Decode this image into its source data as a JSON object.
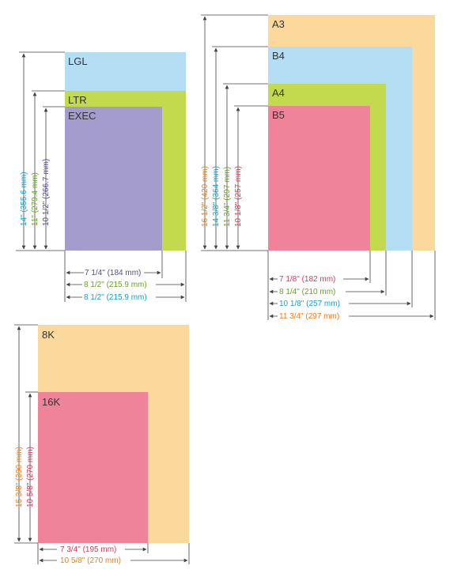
{
  "colors": {
    "lgl": "#b3def4",
    "ltr": "#c3d94e",
    "exec": "#a39ccc",
    "a3": "#fbd99c",
    "b4": "#b3def4",
    "a4": "#c3d94e",
    "b5": "#ee8399",
    "k8": "#fbd99c",
    "k16": "#ee8399",
    "text_cyan": "#1aa0c8",
    "text_green": "#6aa225",
    "text_purple": "#5b4a8e",
    "text_orange": "#e87f1c",
    "text_pink": "#d8385e",
    "line": "#444444"
  },
  "group1": {
    "labels": {
      "lgl": "LGL",
      "ltr": "LTR",
      "exec": "EXEC"
    },
    "heights": {
      "lgl": "14\" (355.6 mm)",
      "ltr": "11\" (279.4 mm)",
      "exec": "10 1/2\" (266.7 mm)"
    },
    "widths": {
      "exec": "7 1/4\" (184 mm)",
      "ltr": "8 1/2\" (215.9 mm)",
      "lgl": "8 1/2\" (215.9 mm)"
    }
  },
  "group2": {
    "labels": {
      "a3": "A3",
      "b4": "B4",
      "a4": "A4",
      "b5": "B5"
    },
    "heights": {
      "a3": "16 1/2\" (420 mm)",
      "b4": "14 3/8\" (364 mm)",
      "a4": "11 3/4\" (297 mm)",
      "b5": "10 1/8\" (257 mm)"
    },
    "widths": {
      "b5": "7 1/8\" (182 mm)",
      "a4": "8 1/4\" (210 mm)",
      "b4": "10 1/8\" (257 mm)",
      "a3": "11 3/4\" (297 mm)"
    }
  },
  "group3": {
    "labels": {
      "k8": "8K",
      "k16": "16K"
    },
    "heights": {
      "k8": "15 3/8\" (390 mm)",
      "k16": "10 5/8\" (270 mm)"
    },
    "widths": {
      "k16": "7 3/4\" (195 mm)",
      "k8": "10 5/8\" (270 mm)"
    }
  }
}
